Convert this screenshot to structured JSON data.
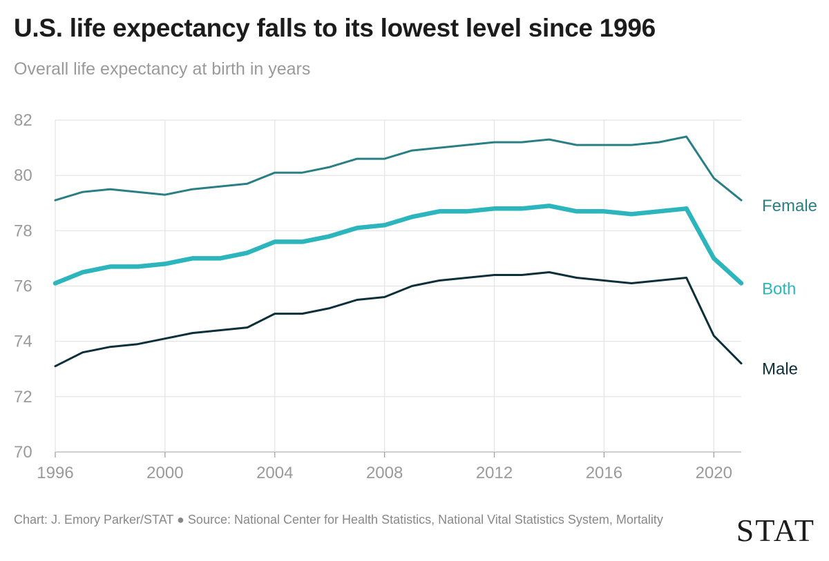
{
  "title": "U.S. life expectancy falls to its lowest level since 1996",
  "subtitle": "Overall life expectancy at birth in years",
  "footer": {
    "text": "Chart: J. Emory Parker/STAT ● Source: National Center for Health Statistics, National Vital Statistics System, Mortality",
    "logo": "STAT"
  },
  "colors": {
    "female": "#2a7f86",
    "both": "#2cb5bd",
    "male": "#0c2f3a",
    "grid": "#e3e3e3",
    "axis": "#9a9a9a"
  },
  "chart_data": {
    "type": "line",
    "title": "U.S. life expectancy falls to its lowest level since 1996",
    "subtitle": "Overall life expectancy at birth in years",
    "xlabel": "",
    "ylabel": "",
    "xlim": [
      1996,
      2021
    ],
    "ylim": [
      70,
      82
    ],
    "x_ticks": [
      "1996",
      "2000",
      "2004",
      "2008",
      "2012",
      "2016",
      "2020"
    ],
    "y_ticks": [
      "70",
      "72",
      "74",
      "76",
      "78",
      "80",
      "82"
    ],
    "grid": true,
    "legend": "inline labels at right end of lines",
    "x": [
      1996,
      1997,
      1998,
      1999,
      2000,
      2001,
      2002,
      2003,
      2004,
      2005,
      2006,
      2007,
      2008,
      2009,
      2010,
      2011,
      2012,
      2013,
      2014,
      2015,
      2016,
      2017,
      2018,
      2019,
      2020,
      2021
    ],
    "series": [
      {
        "name": "Female",
        "values": [
          79.1,
          79.4,
          79.5,
          79.4,
          79.3,
          79.5,
          79.6,
          79.7,
          80.1,
          80.1,
          80.3,
          80.6,
          80.6,
          80.9,
          81.0,
          81.1,
          81.2,
          81.2,
          81.3,
          81.1,
          81.1,
          81.1,
          81.2,
          81.4,
          79.9,
          79.1
        ]
      },
      {
        "name": "Both",
        "values": [
          76.1,
          76.5,
          76.7,
          76.7,
          76.8,
          77.0,
          77.0,
          77.2,
          77.6,
          77.6,
          77.8,
          78.1,
          78.2,
          78.5,
          78.7,
          78.7,
          78.8,
          78.8,
          78.9,
          78.7,
          78.7,
          78.6,
          78.7,
          78.8,
          77.0,
          76.1
        ]
      },
      {
        "name": "Male",
        "values": [
          73.1,
          73.6,
          73.8,
          73.9,
          74.1,
          74.3,
          74.4,
          74.5,
          75.0,
          75.0,
          75.2,
          75.5,
          75.6,
          76.0,
          76.2,
          76.3,
          76.4,
          76.4,
          76.5,
          76.3,
          76.2,
          76.1,
          76.2,
          76.3,
          74.2,
          73.2
        ]
      }
    ]
  }
}
